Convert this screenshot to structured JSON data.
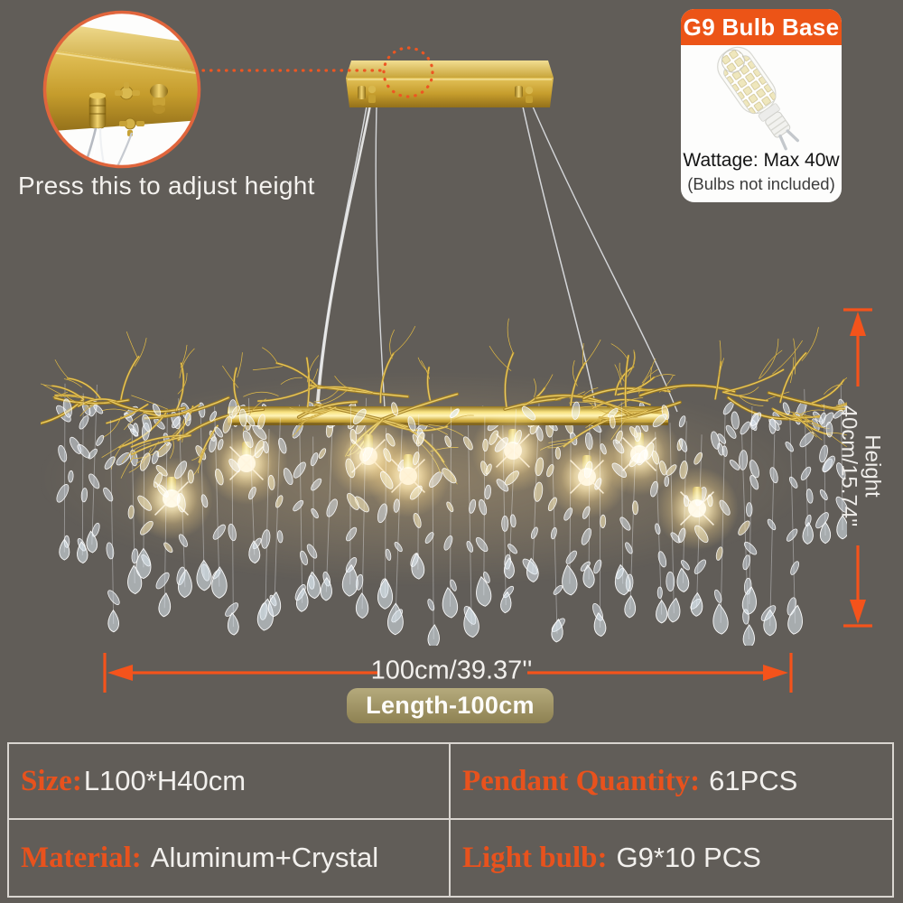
{
  "colors": {
    "background": "#615d58",
    "accent_orange": "#ee5420",
    "callout_ring": "#e0653c",
    "gold": "#c9a130",
    "badge_khaki": "#a39768",
    "table_border": "#d9d5d0",
    "text_light": "#f2f0ed"
  },
  "inset": {
    "caption": "Press this to adjust height"
  },
  "bulb_box": {
    "title": "G9 Bulb Base",
    "wattage": "Wattage: Max 40w",
    "note": "(Bulbs not included)"
  },
  "dimensions": {
    "height": {
      "label": "Height",
      "value": "40cm/15.74''"
    },
    "length": {
      "value": "100cm/39.37''",
      "badge": "Length-100cm"
    }
  },
  "spec_table": {
    "rows": [
      [
        {
          "label": "Size:",
          "value": "L100*H40cm"
        },
        {
          "label": "Pendant Quantity:",
          "value": "61PCS"
        }
      ],
      [
        {
          "label": "Material:",
          "value": "Aluminum+Crystal"
        },
        {
          "label": "Light bulb:",
          "value": "G9*10 PCS"
        }
      ]
    ]
  }
}
